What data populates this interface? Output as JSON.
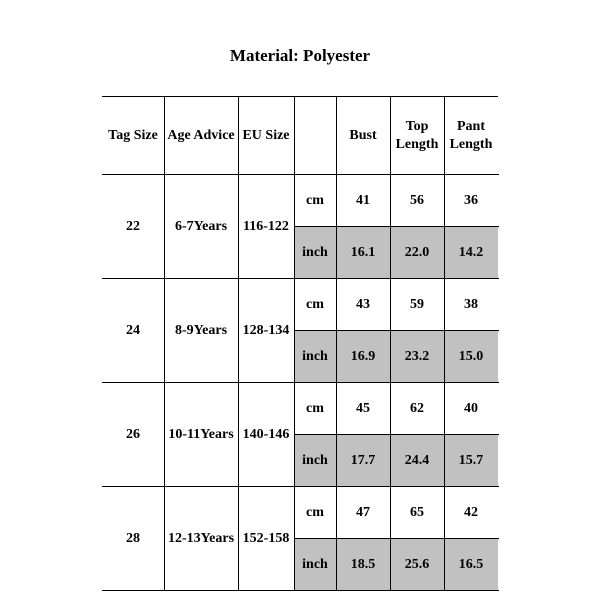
{
  "title": "Material: Polyester",
  "columns": {
    "tag": "Tag Size",
    "age": "Age Advice",
    "eu": "EU Size",
    "unit": "",
    "bust": "Bust",
    "top": "Top Length",
    "pant": "Pant Length"
  },
  "unitLabels": {
    "cm": "cm",
    "inch": "inch"
  },
  "rows": [
    {
      "tag": "22",
      "age": "6-7Years",
      "eu": "116-122",
      "cm": {
        "bust": "41",
        "top": "56",
        "pant": "36"
      },
      "inch": {
        "bust": "16.1",
        "top": "22.0",
        "pant": "14.2"
      }
    },
    {
      "tag": "24",
      "age": "8-9Years",
      "eu": "128-134",
      "cm": {
        "bust": "43",
        "top": "59",
        "pant": "38"
      },
      "inch": {
        "bust": "16.9",
        "top": "23.2",
        "pant": "15.0"
      }
    },
    {
      "tag": "26",
      "age": "10-11Years",
      "eu": "140-146",
      "cm": {
        "bust": "45",
        "top": "62",
        "pant": "40"
      },
      "inch": {
        "bust": "17.7",
        "top": "24.4",
        "pant": "15.7"
      }
    },
    {
      "tag": "28",
      "age": "12-13Years",
      "eu": "152-158",
      "cm": {
        "bust": "47",
        "top": "65",
        "pant": "42"
      },
      "inch": {
        "bust": "18.5",
        "top": "25.6",
        "pant": "16.5"
      }
    }
  ],
  "style": {
    "shaded_bg": "#c1c1c1",
    "border_color": "#000000",
    "background": "#ffffff",
    "font_family": "Times New Roman",
    "title_fontsize": 17,
    "cell_fontsize": 14
  }
}
